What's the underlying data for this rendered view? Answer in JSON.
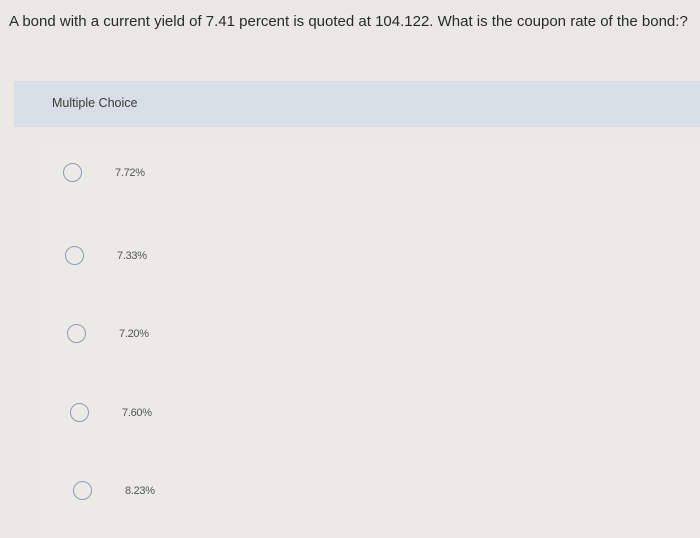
{
  "question": "A bond with a current yield of 7.41 percent is quoted at 104.122. What is the coupon rate of the bond:?",
  "section_label": "Multiple Choice",
  "options": [
    {
      "label": "7.72%",
      "selected": false
    },
    {
      "label": "7.33%",
      "selected": false
    },
    {
      "label": "7.20%",
      "selected": false
    },
    {
      "label": "7.60%",
      "selected": false
    },
    {
      "label": "8.23%",
      "selected": false
    }
  ],
  "colors": {
    "radio_border": "#8c9bb6",
    "band": "#d8dee6"
  }
}
